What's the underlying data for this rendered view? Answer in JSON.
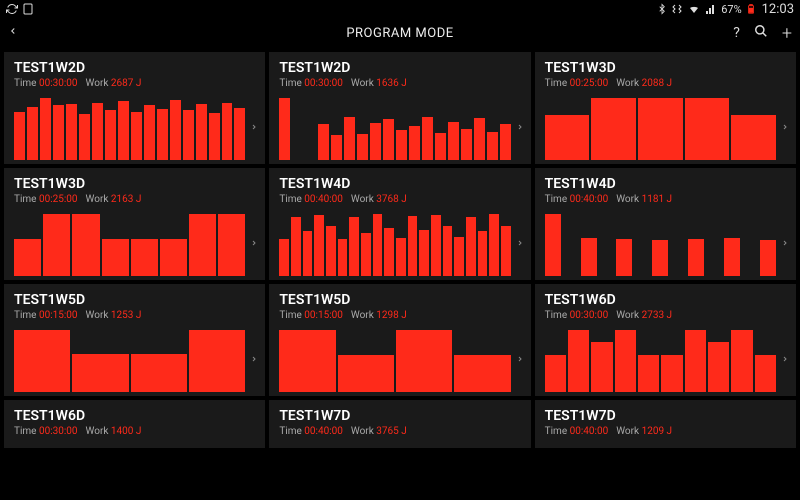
{
  "status_bar": {
    "battery_text": "67%",
    "clock": "12:03"
  },
  "header": {
    "title": "PROGRAM MODE"
  },
  "meta_labels": {
    "time_label": "Time",
    "work_label": "Work"
  },
  "colors": {
    "bar_color": "#ff2a1a",
    "accent": "#ff2a1a",
    "card_bg": "#1a1a1a",
    "page_bg": "#000000",
    "text_dim": "#aaaaaa"
  },
  "cards": [
    {
      "title": "TEST1W2D",
      "time": "00:30:00",
      "work": "2687 J",
      "bars": [
        78,
        85,
        100,
        88,
        90,
        75,
        92,
        80,
        95,
        78,
        88,
        82,
        96,
        80,
        90,
        76,
        92,
        84
      ]
    },
    {
      "title": "TEST1W2D",
      "time": "00:30:00",
      "work": "1636 J",
      "bars": [
        100,
        0,
        0,
        58,
        40,
        70,
        42,
        60,
        66,
        48,
        55,
        70,
        44,
        62,
        50,
        68,
        45,
        58
      ]
    },
    {
      "title": "TEST1W3D",
      "time": "00:25:00",
      "work": "2088 J",
      "bars": [
        72,
        100,
        100,
        100,
        72
      ]
    },
    {
      "title": "TEST1W3D",
      "time": "00:25:00",
      "work": "2163 J",
      "bars": [
        60,
        100,
        100,
        60,
        60,
        60,
        100,
        100
      ]
    },
    {
      "title": "TEST1W4D",
      "time": "00:40:00",
      "work": "3768 J",
      "bars": [
        60,
        95,
        72,
        98,
        80,
        60,
        95,
        70,
        100,
        78,
        62,
        96,
        74,
        98,
        80,
        63,
        95,
        72,
        100,
        80
      ]
    },
    {
      "title": "TEST1W4D",
      "time": "00:40:00",
      "work": "1181 J",
      "bars": [
        100,
        0,
        62,
        0,
        60,
        0,
        58,
        0,
        60,
        0,
        62,
        0,
        58
      ]
    },
    {
      "title": "TEST1W5D",
      "time": "00:15:00",
      "work": "1253 J",
      "bars": [
        100,
        62,
        62,
        100
      ]
    },
    {
      "title": "TEST1W5D",
      "time": "00:15:00",
      "work": "1298 J",
      "bars": [
        100,
        60,
        100,
        60
      ]
    },
    {
      "title": "TEST1W6D",
      "time": "00:30:00",
      "work": "2733 J",
      "bars": [
        60,
        100,
        80,
        100,
        60,
        60,
        100,
        80,
        100,
        60
      ]
    },
    {
      "title": "TEST1W6D",
      "time": "00:30:00",
      "work": "1400 J",
      "bars": []
    },
    {
      "title": "TEST1W7D",
      "time": "00:40:00",
      "work": "3765 J",
      "bars": []
    },
    {
      "title": "TEST1W7D",
      "time": "00:40:00",
      "work": "1209 J",
      "bars": []
    }
  ]
}
